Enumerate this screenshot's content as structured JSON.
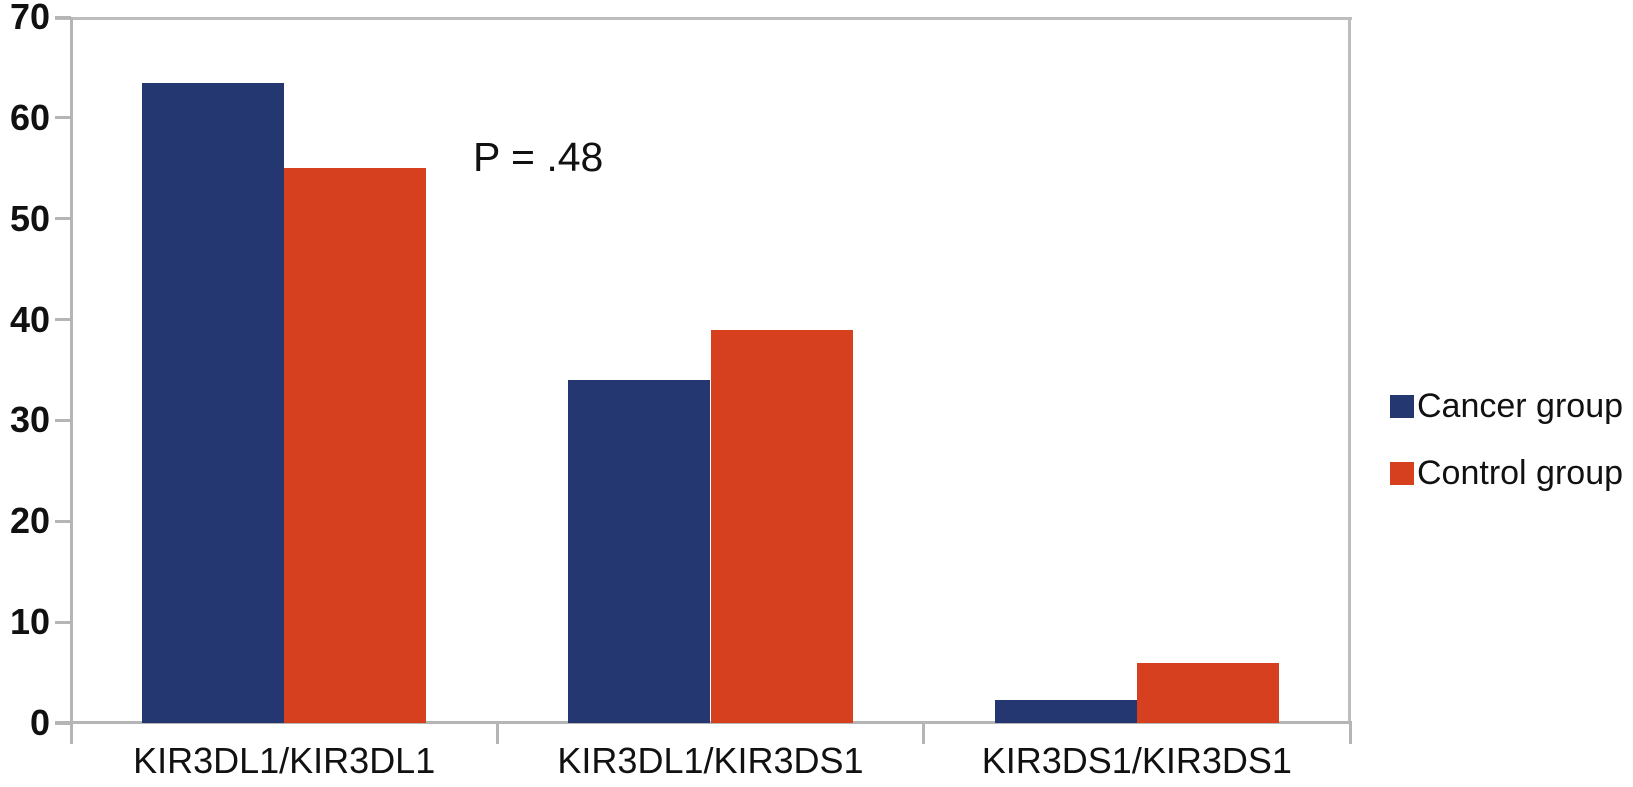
{
  "chart_data": {
    "type": "bar",
    "title": "",
    "xlabel": "",
    "ylabel": "",
    "categories": [
      "KIR3DL1/KIR3DL1",
      "KIR3DL1/KIR3DS1",
      "KIR3DS1/KIR3DS1"
    ],
    "series": [
      {
        "name": "Cancer group",
        "color": "#253770",
        "values": [
          63.5,
          34,
          2.3
        ]
      },
      {
        "name": "Control group",
        "color": "#D7401E",
        "values": [
          55,
          39,
          6
        ]
      }
    ],
    "annotation": "P = .48",
    "ylim": [
      0,
      70
    ],
    "yticks": [
      0,
      10,
      20,
      30,
      40,
      50,
      60,
      70
    ],
    "grid": false,
    "legend_position": "right",
    "axis_color": "#b5b5b5",
    "text_color": "#111111"
  }
}
